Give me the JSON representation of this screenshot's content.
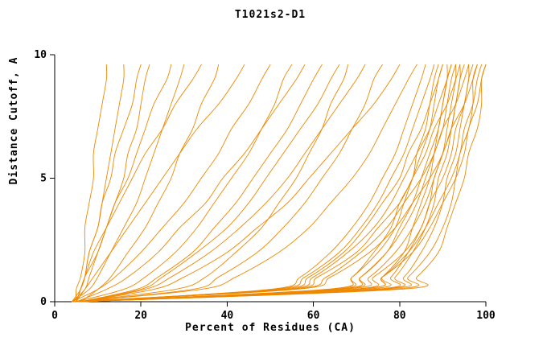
{
  "figure": {
    "title": "T1021s2-D1"
  },
  "chart_data": {
    "type": "line",
    "title": "T1021s2-D1",
    "xlabel": "Percent of Residues (CA)",
    "ylabel": "Distance Cutoff, A",
    "xlim": [
      0,
      100
    ],
    "ylim": [
      0,
      10
    ],
    "x_ticks": [
      0,
      20,
      40,
      60,
      80,
      100
    ],
    "y_ticks": [
      0,
      5,
      10
    ],
    "grid": false,
    "legend": "none",
    "line_color": "#ee8800",
    "y_samples": [
      0,
      0.5,
      1,
      2,
      3,
      4,
      5,
      6,
      7,
      8,
      9,
      9.6
    ],
    "series": [
      {
        "x": [
          5,
          5,
          6,
          7,
          7,
          8,
          9,
          9,
          10,
          11,
          12,
          12
        ]
      },
      {
        "x": [
          4,
          6,
          7,
          8,
          10,
          11,
          12,
          13,
          14,
          15,
          16,
          16
        ]
      },
      {
        "x": [
          5,
          6,
          7,
          8,
          10,
          11,
          13,
          14,
          16,
          18,
          19,
          20
        ]
      },
      {
        "x": [
          4,
          7,
          8,
          10,
          12,
          14,
          16,
          17,
          19,
          20,
          21,
          22
        ]
      },
      {
        "x": [
          5,
          6,
          7,
          10,
          12,
          14,
          17,
          19,
          21,
          23,
          26,
          27
        ]
      },
      {
        "x": [
          4,
          8,
          10,
          13,
          16,
          19,
          21,
          23,
          25,
          27,
          29,
          30
        ]
      },
      {
        "x": [
          5,
          6,
          7,
          9,
          12,
          15,
          18,
          21,
          25,
          28,
          32,
          34
        ]
      },
      {
        "x": [
          6,
          10,
          13,
          17,
          21,
          24,
          27,
          29,
          32,
          34,
          37,
          38
        ]
      },
      {
        "x": [
          5,
          7,
          9,
          13,
          17,
          21,
          25,
          29,
          33,
          38,
          42,
          44
        ]
      },
      {
        "x": [
          4,
          10,
          14,
          20,
          25,
          30,
          34,
          38,
          41,
          45,
          48,
          50
        ]
      },
      {
        "x": [
          5,
          12,
          17,
          24,
          29,
          35,
          39,
          44,
          48,
          52,
          56,
          58
        ]
      },
      {
        "x": [
          5,
          16,
          21,
          28,
          33,
          37,
          41,
          45,
          48,
          51,
          53,
          55
        ]
      },
      {
        "x": [
          6,
          19,
          24,
          32,
          37,
          42,
          46,
          50,
          54,
          57,
          60,
          62
        ]
      },
      {
        "x": [
          6,
          20,
          25,
          33,
          40,
          45,
          49,
          53,
          57,
          61,
          64,
          66
        ]
      },
      {
        "x": [
          5,
          28,
          35,
          42,
          48,
          52,
          56,
          59,
          62,
          64,
          67,
          68
        ]
      },
      {
        "x": [
          6,
          21,
          27,
          36,
          43,
          49,
          54,
          58,
          62,
          66,
          70,
          72
        ]
      },
      {
        "x": [
          5,
          32,
          38,
          47,
          53,
          58,
          62,
          66,
          69,
          72,
          74,
          76
        ]
      },
      {
        "x": [
          6,
          23,
          30,
          40,
          47,
          54,
          59,
          64,
          69,
          74,
          78,
          80
        ]
      },
      {
        "x": [
          5,
          34,
          42,
          52,
          59,
          64,
          69,
          73,
          76,
          79,
          82,
          84
        ]
      },
      {
        "x": [
          6,
          50,
          57,
          64,
          69,
          73,
          76,
          79,
          81,
          83,
          85,
          86
        ]
      },
      {
        "x": [
          5,
          51,
          58,
          66,
          71,
          75,
          78,
          81,
          83,
          85,
          87,
          88
        ]
      },
      {
        "x": [
          6,
          63,
          69,
          74,
          78,
          80,
          83,
          84,
          86,
          87,
          88,
          89
        ]
      },
      {
        "x": [
          4,
          52,
          59,
          67,
          72,
          76,
          80,
          82,
          85,
          87,
          89,
          90
        ]
      },
      {
        "x": [
          5,
          64,
          69,
          75,
          79,
          81,
          83,
          85,
          87,
          88,
          89,
          90
        ]
      },
      {
        "x": [
          6,
          72,
          76,
          81,
          83,
          85,
          87,
          88,
          89,
          90,
          91,
          91
        ]
      },
      {
        "x": [
          5,
          65,
          71,
          77,
          80,
          83,
          85,
          87,
          89,
          90,
          91,
          92
        ]
      },
      {
        "x": [
          4,
          53,
          60,
          68,
          74,
          78,
          81,
          84,
          87,
          89,
          91,
          92
        ]
      },
      {
        "x": [
          6,
          74,
          78,
          82,
          85,
          87,
          88,
          90,
          91,
          92,
          93,
          93
        ]
      },
      {
        "x": [
          5,
          66,
          71,
          77,
          81,
          84,
          86,
          88,
          90,
          91,
          92,
          93
        ]
      },
      {
        "x": [
          4,
          54,
          61,
          70,
          75,
          80,
          83,
          86,
          88,
          91,
          93,
          94
        ]
      },
      {
        "x": [
          6,
          75,
          79,
          83,
          86,
          88,
          89,
          91,
          92,
          93,
          94,
          94
        ]
      },
      {
        "x": [
          5,
          67,
          73,
          79,
          83,
          86,
          88,
          90,
          92,
          93,
          94,
          95
        ]
      },
      {
        "x": [
          4,
          55,
          63,
          71,
          77,
          81,
          85,
          88,
          90,
          93,
          95,
          96
        ]
      },
      {
        "x": [
          6,
          76,
          81,
          85,
          88,
          90,
          91,
          93,
          94,
          95,
          96,
          96
        ]
      },
      {
        "x": [
          5,
          69,
          74,
          81,
          85,
          87,
          90,
          92,
          93,
          95,
          96,
          97
        ]
      },
      {
        "x": [
          4,
          56,
          64,
          73,
          79,
          83,
          87,
          90,
          92,
          95,
          97,
          98
        ]
      },
      {
        "x": [
          6,
          78,
          82,
          87,
          90,
          92,
          93,
          94,
          96,
          97,
          97,
          98
        ]
      },
      {
        "x": [
          5,
          70,
          76,
          82,
          86,
          89,
          92,
          94,
          95,
          97,
          98,
          99
        ]
      },
      {
        "x": [
          4,
          70,
          76,
          83,
          87,
          90,
          93,
          95,
          96,
          98,
          99,
          100
        ]
      },
      {
        "x": [
          6,
          80,
          84,
          89,
          91,
          93,
          95,
          96,
          98,
          99,
          99,
          100
        ]
      }
    ]
  }
}
